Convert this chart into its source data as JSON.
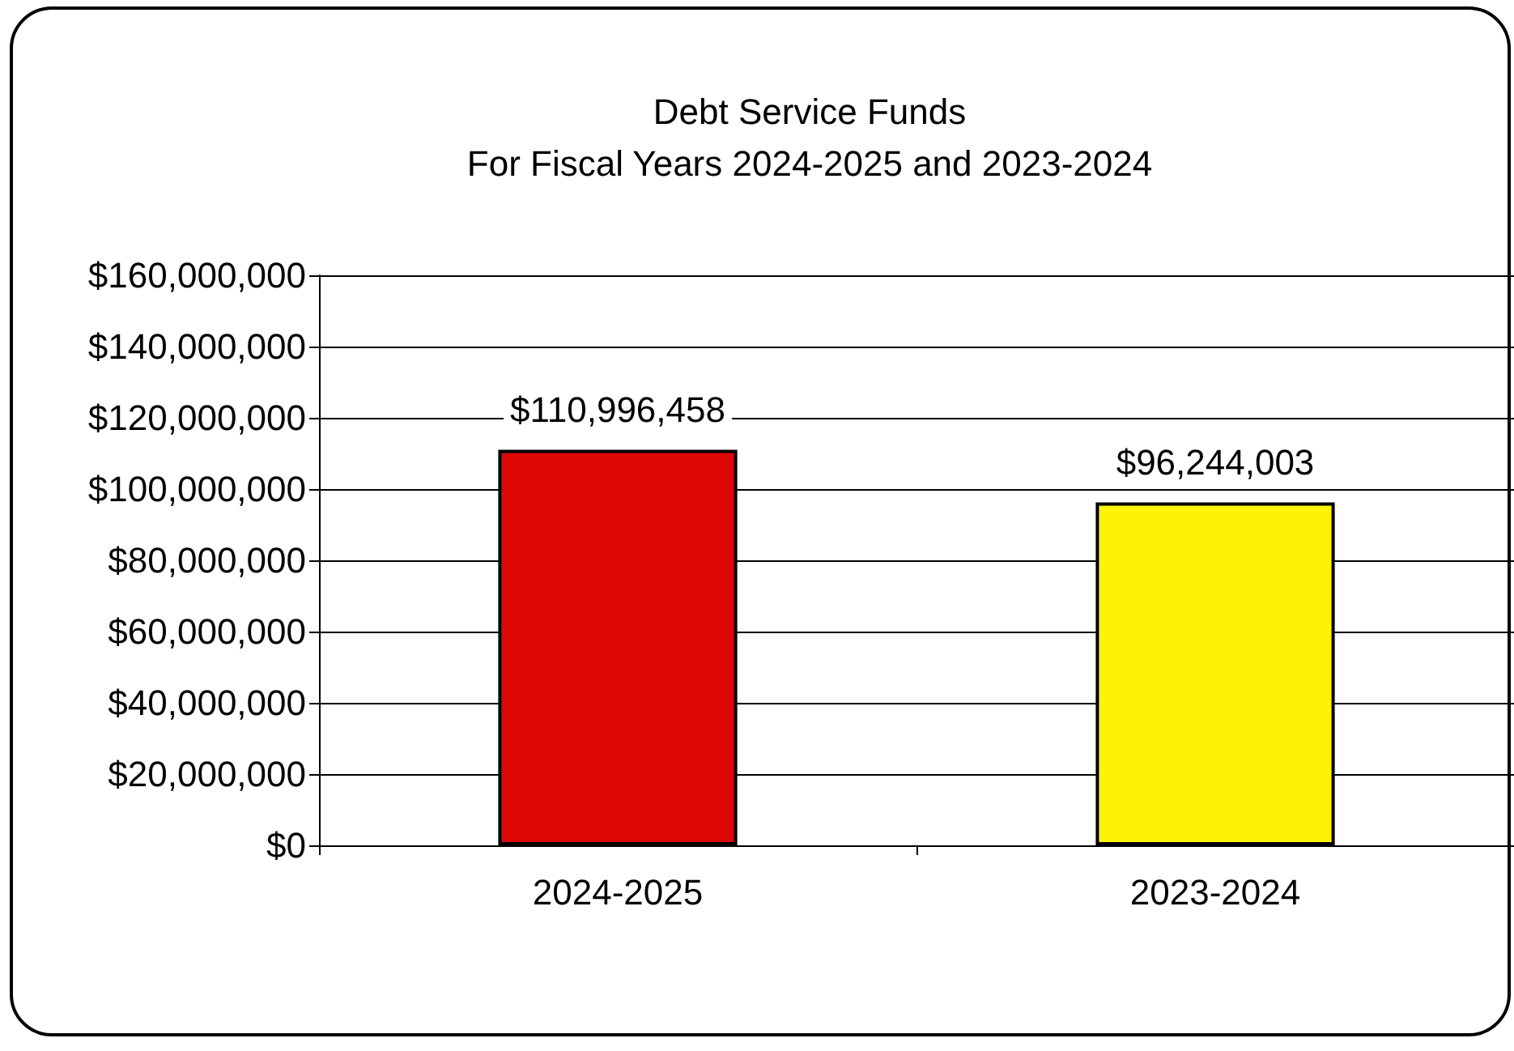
{
  "chart_data": {
    "type": "bar",
    "title": "Debt Service Funds\nFor Fiscal Years 2024-2025 and 2023-2024",
    "categories": [
      "2024-2025",
      "2023-2024"
    ],
    "values": [
      110996458,
      96244003
    ],
    "colors": [
      "#dd0806",
      "#fcf305"
    ],
    "value_labels": [
      "$110,996,458",
      "$96,244,003"
    ],
    "ylim": [
      0,
      160000000
    ],
    "yticks": [
      {
        "value": 0,
        "label": "$0"
      },
      {
        "value": 20000000,
        "label": "$20,000,000"
      },
      {
        "value": 40000000,
        "label": "$40,000,000"
      },
      {
        "value": 60000000,
        "label": "$60,000,000"
      },
      {
        "value": 80000000,
        "label": "$80,000,000"
      },
      {
        "value": 100000000,
        "label": "$100,000,000"
      },
      {
        "value": 120000000,
        "label": "$120,000,000"
      },
      {
        "value": 140000000,
        "label": "$140,000,000"
      },
      {
        "value": 160000000,
        "label": "$160,000,000"
      }
    ],
    "grid": "y"
  }
}
